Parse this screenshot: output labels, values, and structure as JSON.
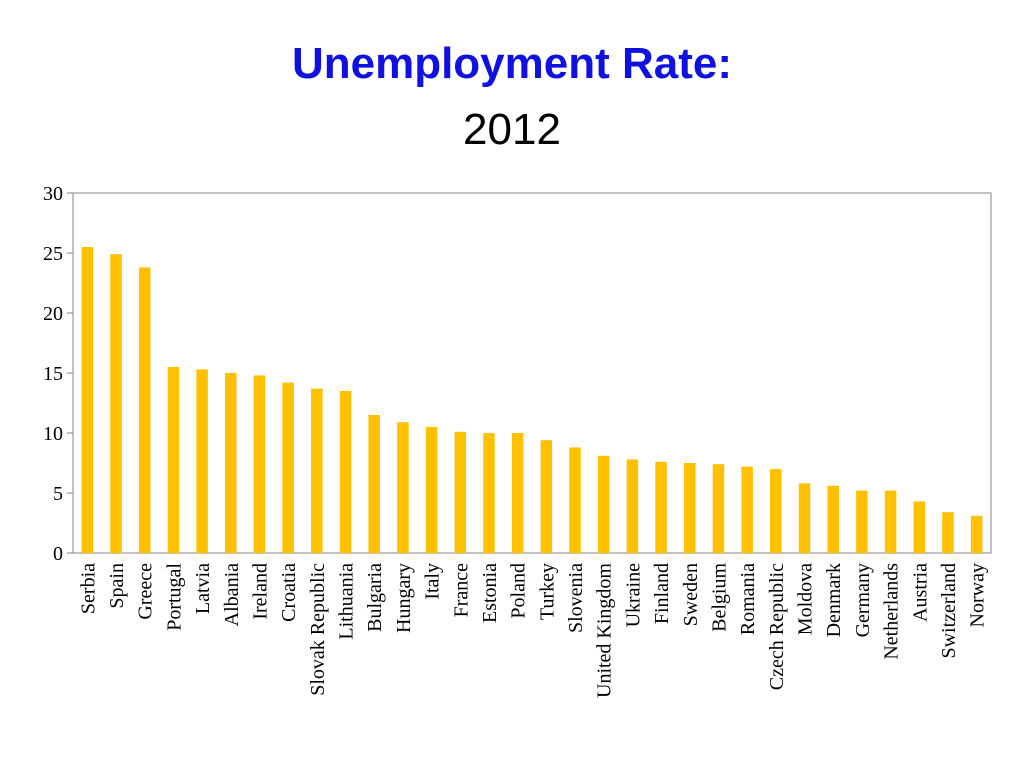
{
  "slide": {
    "title": "Unemployment Rate:",
    "subtitle": "2012"
  },
  "colors": {
    "title": "#1010e0",
    "bar": "#ffc000",
    "axis": "#868686"
  },
  "chart_data": {
    "type": "bar",
    "title": "",
    "xlabel": "",
    "ylabel": "",
    "ylim": [
      0,
      30
    ],
    "yticks": [
      0,
      5,
      10,
      15,
      20,
      25,
      30
    ],
    "grid": false,
    "legend": "none",
    "categories": [
      "Serbia",
      "Spain",
      "Greece",
      "Portugal",
      "Latvia",
      "Albania",
      "Ireland",
      "Croatia",
      "Slovak Republic",
      "Lithuania",
      "Bulgaria",
      "Hungary",
      "Italy",
      "France",
      "Estonia",
      "Poland",
      "Turkey",
      "Slovenia",
      "United Kingdom",
      "Ukraine",
      "Finland",
      "Sweden",
      "Belgium",
      "Romania",
      "Czech Republic",
      "Moldova",
      "Denmark",
      "Germany",
      "Netherlands",
      "Austria",
      "Switzerland",
      "Norway"
    ],
    "values": [
      25.5,
      24.9,
      23.8,
      15.5,
      15.3,
      15.0,
      14.8,
      14.2,
      13.7,
      13.5,
      11.5,
      10.9,
      10.5,
      10.1,
      10.0,
      10.0,
      9.4,
      8.8,
      8.1,
      7.8,
      7.6,
      7.5,
      7.4,
      7.2,
      7.0,
      5.8,
      5.6,
      5.2,
      5.2,
      4.3,
      3.4,
      3.1
    ]
  }
}
